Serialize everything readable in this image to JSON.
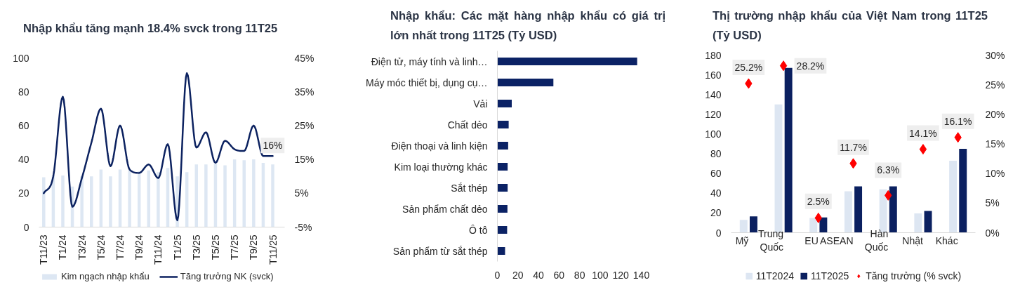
{
  "chart_data": [
    {
      "type": "bar",
      "title": "Nhập khẩu tăng mạnh 18.4% svck trong 11T25",
      "categories": [
        "T11/23",
        null,
        "T1/24",
        null,
        "T3/24",
        null,
        "T5/24",
        null,
        "T7/24",
        null,
        "T9/24",
        null,
        "T11/24",
        null,
        "T1/25",
        null,
        "T3/25",
        null,
        "T5/25",
        null,
        "T7/25",
        null,
        "T9/25",
        null,
        "T11/25"
      ],
      "series": [
        {
          "name": "Kim ngạch nhập khẩu",
          "type": "bar",
          "color": "#dde7f3",
          "values": [
            29.5,
            30.5,
            30.5,
            24,
            30,
            30,
            34,
            30,
            34,
            33.5,
            33,
            33.5,
            32.5,
            35,
            30,
            32.5,
            37,
            37,
            37.5,
            36.5,
            40,
            39.5,
            40,
            38,
            37
          ]
        },
        {
          "name": "Tăng trưởng NK (svck)",
          "type": "line",
          "axis": "y2",
          "color": "#0c2260",
          "values": [
            5,
            10,
            33.5,
            1,
            9.5,
            20,
            30,
            13,
            25,
            12,
            11,
            13.5,
            9.5,
            19.5,
            -3,
            40.5,
            18.5,
            23,
            14,
            20.5,
            18,
            17.5,
            25,
            16,
            16
          ],
          "value_labels": [
            null,
            null,
            null,
            null,
            null,
            null,
            null,
            null,
            null,
            null,
            null,
            null,
            null,
            null,
            null,
            null,
            null,
            null,
            null,
            null,
            null,
            null,
            null,
            null,
            "16%"
          ]
        }
      ],
      "ylim": [
        0,
        100
      ],
      "yticks": [
        0,
        20,
        40,
        60,
        80,
        100
      ],
      "y2lim": [
        -5,
        45
      ],
      "y2ticks": [
        {
          "value": -5,
          "label": "-5%"
        },
        {
          "value": 5,
          "label": "5%"
        },
        {
          "value": 15,
          "label": "15%"
        },
        {
          "value": 25,
          "label": "25%"
        },
        {
          "value": 35,
          "label": "35%"
        },
        {
          "value": 45,
          "label": "45%"
        }
      ],
      "legend": "bottom"
    },
    {
      "type": "bar",
      "orientation": "horizontal",
      "title": "Nhập khẩu: Các mặt hàng nhập khẩu có giá trị lớn nhất trong 11T25 (Tỷ USD)",
      "categories": [
        "Điện tử, máy tính và linh…",
        "Máy móc thiết bị, dụng cụ…",
        "Vải",
        "Chất dẻo",
        "Điện thoại và linh kiện",
        "Kim loại thường khác",
        "Sắt thép",
        "Sản phẩm chất dẻo",
        "Ô tô",
        "Sản phẩm từ sắt thép"
      ],
      "values": [
        136,
        54.5,
        14,
        11,
        10.5,
        10,
        10,
        9.8,
        9.5,
        7.5
      ],
      "color": "#0b2265",
      "xlim": [
        0,
        140
      ],
      "xticks": [
        0,
        20,
        40,
        60,
        80,
        100,
        120,
        140
      ]
    },
    {
      "type": "bar",
      "title": "Thị trường nhập khẩu của Việt Nam trong 11T25 (Tỷ USD)",
      "categories": [
        "Mỹ",
        "Trung Quốc",
        "EU",
        "ASEAN",
        "Hàn Quốc",
        "Nhật",
        "Khác"
      ],
      "series": [
        {
          "name": "11T2024",
          "type": "bar",
          "color": "#dde6f2",
          "values": [
            13,
            130,
            15,
            42,
            44,
            19.5,
            73
          ]
        },
        {
          "name": "11T2025",
          "type": "bar",
          "color": "#0b2060",
          "values": [
            16.5,
            167,
            15.5,
            47,
            47,
            22,
            85
          ]
        },
        {
          "name": "Tăng trưởng (% svck)",
          "type": "scatter",
          "axis": "y2",
          "marker": "diamond",
          "color": "#ff0000",
          "values": [
            25.2,
            28.2,
            2.5,
            11.7,
            6.3,
            14.1,
            16.1
          ],
          "value_labels": [
            "25.2%",
            "28.2%",
            "2.5%",
            "11.7%",
            "6.3%",
            "14.1%",
            "16.1%"
          ]
        }
      ],
      "ylim": [
        0,
        180
      ],
      "yticks": [
        0,
        20,
        40,
        60,
        80,
        100,
        120,
        140,
        160,
        180
      ],
      "y2lim": [
        0,
        30
      ],
      "y2ticks": [
        {
          "value": 0,
          "label": "0%"
        },
        {
          "value": 5,
          "label": "5%"
        },
        {
          "value": 10,
          "label": "10%"
        },
        {
          "value": 15,
          "label": "15%"
        },
        {
          "value": 20,
          "label": "20%"
        },
        {
          "value": 25,
          "label": "25%"
        },
        {
          "value": 30,
          "label": "30%"
        }
      ],
      "legend": "bottom"
    }
  ]
}
